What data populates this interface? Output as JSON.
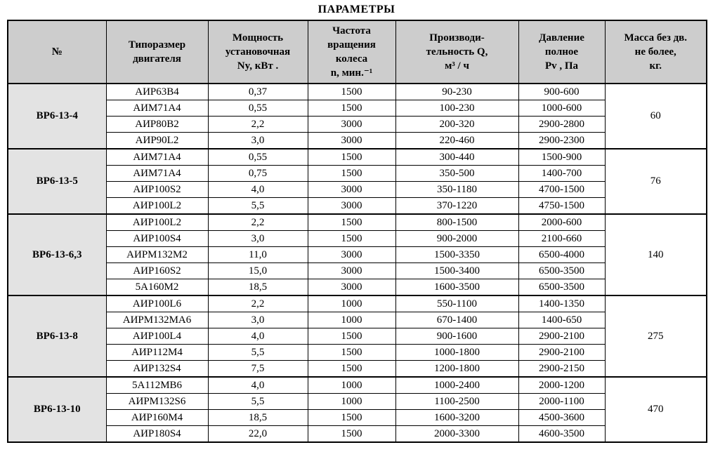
{
  "title": "ПАРАМЕТРЫ",
  "table": {
    "headers": [
      "№",
      "Типоразмер\nдвигателя",
      "Мощность\nустановочная\nNy, кВт .",
      "Частота\nвращения\nколеса\nn, мин.⁻¹",
      "Производи-\nтельность Q,\nм³ / ч",
      "Давление\nполное\nPv , Па",
      "Масса без дв.\nне более,\nкг."
    ],
    "groups": [
      {
        "number": "ВР6-13-4",
        "mass": "60",
        "rows": [
          [
            "АИР63В4",
            "0,37",
            "1500",
            "90-230",
            "900-600"
          ],
          [
            "АИМ71А4",
            "0,55",
            "1500",
            "100-230",
            "1000-600"
          ],
          [
            "АИР80В2",
            "2,2",
            "3000",
            "200-320",
            "2900-2800"
          ],
          [
            "АИР90L2",
            "3,0",
            "3000",
            "220-460",
            "2900-2300"
          ]
        ]
      },
      {
        "number": "ВР6-13-5",
        "mass": "76",
        "rows": [
          [
            "АИМ71А4",
            "0,55",
            "1500",
            "300-440",
            "1500-900"
          ],
          [
            "АИМ71А4",
            "0,75",
            "1500",
            "350-500",
            "1400-700"
          ],
          [
            "АИР100S2",
            "4,0",
            "3000",
            "350-1180",
            "4700-1500"
          ],
          [
            "АИР100L2",
            "5,5",
            "3000",
            "370-1220",
            "4750-1500"
          ]
        ]
      },
      {
        "number": "ВР6-13-6,3",
        "mass": "140",
        "rows": [
          [
            "АИР100L2",
            "2,2",
            "1500",
            "800-1500",
            "2000-600"
          ],
          [
            "АИР100S4",
            "3,0",
            "1500",
            "900-2000",
            "2100-660"
          ],
          [
            "АИРМ132М2",
            "11,0",
            "3000",
            "1500-3350",
            "6500-4000"
          ],
          [
            "АИР160S2",
            "15,0",
            "3000",
            "1500-3400",
            "6500-3500"
          ],
          [
            "5А160М2",
            "18,5",
            "3000",
            "1600-3500",
            "6500-3500"
          ]
        ]
      },
      {
        "number": "ВР6-13-8",
        "mass": "275",
        "rows": [
          [
            "АИР100L6",
            "2,2",
            "1000",
            "550-1100",
            "1400-1350"
          ],
          [
            "АИРМ132МА6",
            "3,0",
            "1000",
            "670-1400",
            "1400-650"
          ],
          [
            "АИР100L4",
            "4,0",
            "1500",
            "900-1600",
            "2900-2100"
          ],
          [
            "АИР112М4",
            "5,5",
            "1500",
            "1000-1800",
            "2900-2100"
          ],
          [
            "АИР132S4",
            "7,5",
            "1500",
            "1200-1800",
            "2900-2150"
          ]
        ]
      },
      {
        "number": "ВР6-13-10",
        "mass": "470",
        "rows": [
          [
            "5А112МВ6",
            "4,0",
            "1000",
            "1000-2400",
            "2000-1200"
          ],
          [
            "АИРМ132S6",
            "5,5",
            "1000",
            "1100-2500",
            "2000-1100"
          ],
          [
            "АИР160М4",
            "18,5",
            "1500",
            "1600-3200",
            "4500-3600"
          ],
          [
            "АИР180S4",
            "22,0",
            "1500",
            "2000-3300",
            "4600-3500"
          ]
        ]
      }
    ]
  }
}
